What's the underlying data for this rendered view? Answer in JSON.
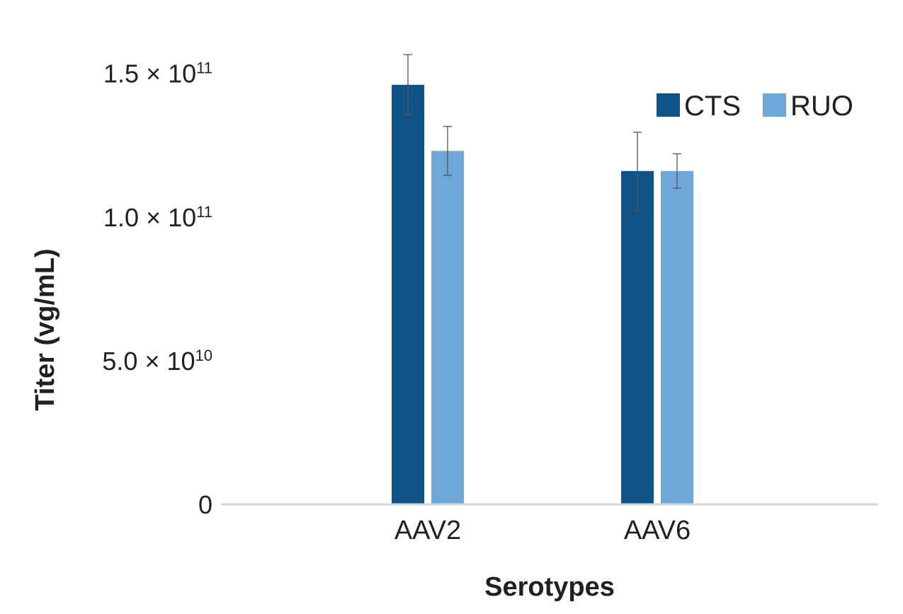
{
  "chart_data": {
    "type": "bar",
    "title": "",
    "xlabel": "Serotypes",
    "ylabel": "Titer (vg/mL)",
    "ylim": [
      0,
      160000000000
    ],
    "categories": [
      "AAV2",
      "AAV6"
    ],
    "series": [
      {
        "name": "CTS",
        "color": "#0f5389",
        "values": [
          146000000000,
          116000000000
        ],
        "errors": [
          10500000000,
          13500000000
        ]
      },
      {
        "name": "RUO",
        "color": "#6ea8d9",
        "values": [
          123000000000,
          116000000000
        ],
        "errors": [
          8500000000,
          6000000000
        ]
      }
    ],
    "yticks": [
      {
        "value": 0,
        "mantissa": "0",
        "exponent": ""
      },
      {
        "value": 50000000000,
        "mantissa": "5.0 × 10",
        "exponent": "10"
      },
      {
        "value": 100000000000,
        "mantissa": "1.0 × 10",
        "exponent": "11"
      },
      {
        "value": 150000000000,
        "mantissa": "1.5 × 10",
        "exponent": "11"
      }
    ],
    "grid": false,
    "legend": "top-right"
  }
}
